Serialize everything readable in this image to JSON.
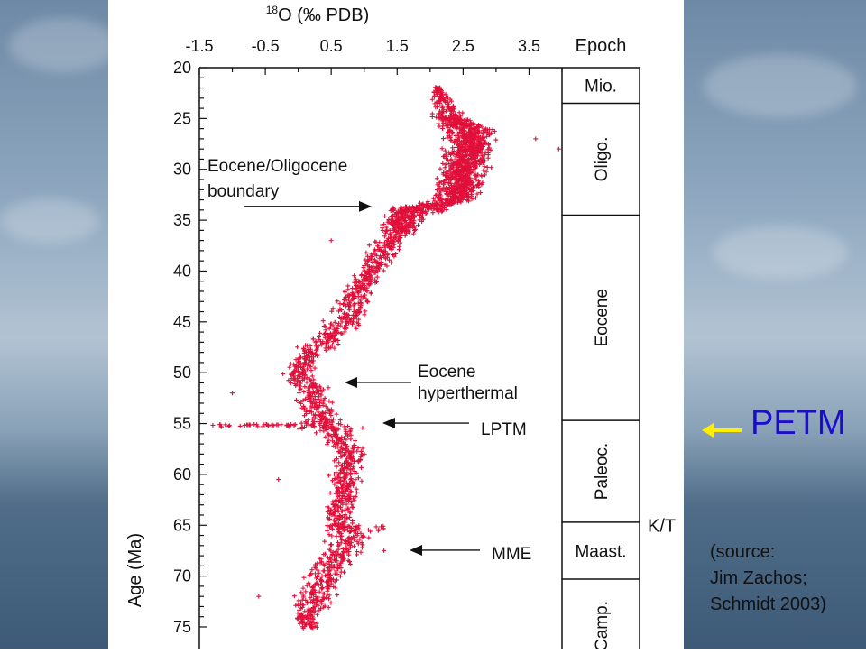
{
  "background": {
    "sky_top": "#6e89a6",
    "sea_color": "#3d5a77"
  },
  "slide": {
    "petm_label": "PETM",
    "arrow_color": "#ffee00",
    "source_lines": [
      "(source:",
      "Jim Zachos;",
      "Schmidt 2003)"
    ]
  },
  "chart_data": {
    "type": "scatter",
    "title": "18O (‰ PDB)",
    "title_sup": "18",
    "title_main": "O (‰ PDB)",
    "ylabel": "Age (Ma)",
    "xlim": [
      -1.5,
      4.0
    ],
    "ylim": [
      20,
      75
    ],
    "y_inverted": true,
    "x_ticks": [
      -1.5,
      -0.5,
      0.5,
      1.5,
      2.5,
      3.5
    ],
    "x_tick_labels": [
      "-1.5",
      "-0.5",
      "0.5",
      "1.5",
      "2.5",
      "3.5"
    ],
    "y_ticks": [
      20,
      25,
      30,
      35,
      40,
      45,
      50,
      55,
      60,
      65,
      70,
      75
    ],
    "y_tick_labels": [
      "20",
      "25",
      "30",
      "35",
      "40",
      "45",
      "50",
      "55",
      "60",
      "65",
      "70",
      "75"
    ],
    "marker_color": "#e0103a",
    "marker": "+",
    "trend": [
      {
        "age": 22,
        "x": 2.1,
        "spread": 0.1
      },
      {
        "age": 25,
        "x": 2.3,
        "spread": 0.3
      },
      {
        "age": 26,
        "x": 2.6,
        "spread": 0.5
      },
      {
        "age": 28,
        "x": 2.6,
        "spread": 0.5
      },
      {
        "age": 30,
        "x": 2.5,
        "spread": 0.45
      },
      {
        "age": 33,
        "x": 2.4,
        "spread": 0.5
      },
      {
        "age": 34,
        "x": 1.7,
        "spread": 0.45
      },
      {
        "age": 36,
        "x": 1.5,
        "spread": 0.35
      },
      {
        "age": 38,
        "x": 1.3,
        "spread": 0.35
      },
      {
        "age": 40,
        "x": 1.1,
        "spread": 0.3
      },
      {
        "age": 42,
        "x": 0.9,
        "spread": 0.35
      },
      {
        "age": 44,
        "x": 0.8,
        "spread": 0.4
      },
      {
        "age": 46,
        "x": 0.6,
        "spread": 0.4
      },
      {
        "age": 48,
        "x": 0.2,
        "spread": 0.4
      },
      {
        "age": 50,
        "x": 0.0,
        "spread": 0.3
      },
      {
        "age": 52,
        "x": 0.2,
        "spread": 0.35
      },
      {
        "age": 54,
        "x": 0.3,
        "spread": 0.4
      },
      {
        "age": 56,
        "x": 0.6,
        "spread": 0.45
      },
      {
        "age": 58,
        "x": 0.8,
        "spread": 0.35
      },
      {
        "age": 60,
        "x": 0.7,
        "spread": 0.3
      },
      {
        "age": 62,
        "x": 0.7,
        "spread": 0.3
      },
      {
        "age": 64,
        "x": 0.6,
        "spread": 0.3
      },
      {
        "age": 66,
        "x": 0.8,
        "spread": 0.4
      },
      {
        "age": 68,
        "x": 0.6,
        "spread": 0.4
      },
      {
        "age": 70,
        "x": 0.4,
        "spread": 0.4
      },
      {
        "age": 72,
        "x": 0.3,
        "spread": 0.45
      },
      {
        "age": 74,
        "x": 0.1,
        "spread": 0.3
      },
      {
        "age": 75,
        "x": 0.2,
        "spread": 0.2
      }
    ],
    "ltpm_spike": {
      "age": 55.2,
      "x_min": -1.3,
      "x_max": 1.0
    },
    "outliers": [
      {
        "age": 22,
        "x": 2.1
      },
      {
        "age": 27,
        "x": 3.6
      },
      {
        "age": 28,
        "x": 3.95
      },
      {
        "age": 37,
        "x": 0.5
      },
      {
        "age": 52,
        "x": -1.0
      },
      {
        "age": 60.5,
        "x": -0.3
      },
      {
        "age": 72,
        "x": -0.6
      },
      {
        "age": 67.5,
        "x": 1.3
      }
    ],
    "annotations": [
      {
        "text_lines": [
          "Eocene/Oligocene",
          "boundary"
        ],
        "age": 34,
        "x": 1.4
      },
      {
        "text_lines": [
          "Eocene",
          "hyperthermal"
        ],
        "age": 51,
        "x": 0.9
      },
      {
        "text_lines": [
          "LPTM"
        ],
        "age": 55,
        "x": 1.1
      },
      {
        "text_lines": [
          "MME"
        ],
        "age": 67.5,
        "x": 1.2
      }
    ],
    "epoch_header": "Epoch",
    "epochs": [
      {
        "label": "Mio.",
        "from": 20,
        "to": 23.5
      },
      {
        "label": "Oligo.",
        "from": 23.5,
        "to": 34.5
      },
      {
        "label": "Eocene",
        "from": 34.5,
        "to": 54.7
      },
      {
        "label": "Paleoc.",
        "from": 54.7,
        "to": 64.7
      },
      {
        "label": "Maast.",
        "from": 64.7,
        "to": 70.3
      },
      {
        "label": "Camp.",
        "from": 70.3,
        "to": 80
      }
    ],
    "kt_label": "K/T",
    "kt_age": 65
  }
}
